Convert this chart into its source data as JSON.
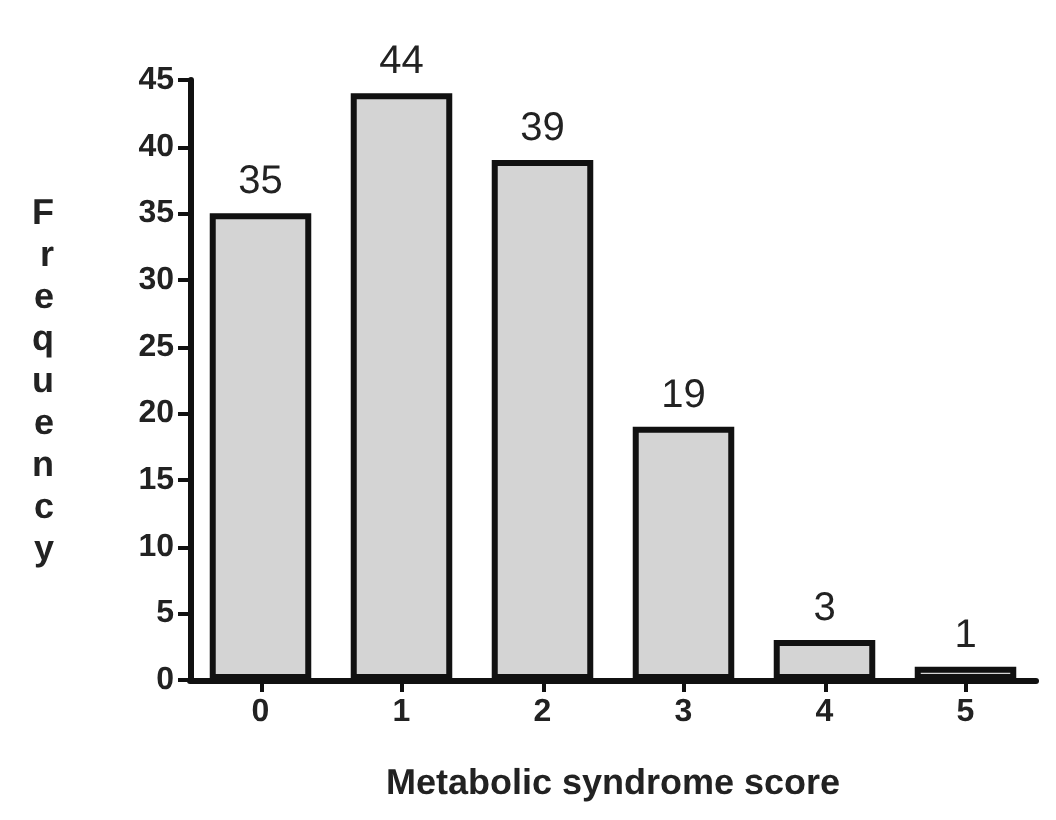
{
  "chart_data": {
    "type": "bar",
    "xlabel": "Metabolic syndrome score",
    "ylabel": "Frequency",
    "categories": [
      "0",
      "1",
      "2",
      "3",
      "4",
      "5"
    ],
    "values": [
      35,
      44,
      39,
      19,
      3,
      1
    ],
    "color": "#d4d4d4",
    "ylim": [
      0,
      45
    ],
    "yticks": [
      0,
      5,
      10,
      15,
      20,
      25,
      30,
      35,
      40,
      45
    ],
    "data_labels": true
  }
}
